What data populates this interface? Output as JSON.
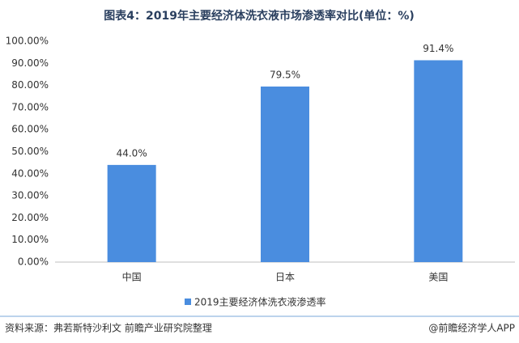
{
  "chart_data": {
    "type": "bar",
    "title": "图表4：2019年主要经济体洗衣液市场渗透率对比(单位：%)",
    "categories": [
      "中国",
      "日本",
      "美国"
    ],
    "series": [
      {
        "name": "2019主要经济体洗衣液渗透率",
        "color": "#4a8ddf",
        "values": [
          44.0,
          79.5,
          91.4
        ],
        "value_labels": [
          "44.0%",
          "79.5%",
          "91.4%"
        ]
      }
    ],
    "ylim": [
      0,
      100
    ],
    "yticks": [
      {
        "value": 0,
        "label": "0.00%"
      },
      {
        "value": 10,
        "label": "10.00%"
      },
      {
        "value": 20,
        "label": "20.00%"
      },
      {
        "value": 30,
        "label": "30.00%"
      },
      {
        "value": 40,
        "label": "40.00%"
      },
      {
        "value": 50,
        "label": "50.00%"
      },
      {
        "value": 60,
        "label": "60.00%"
      },
      {
        "value": 70,
        "label": "70.00%"
      },
      {
        "value": 80,
        "label": "80.00%"
      },
      {
        "value": 90,
        "label": "90.00%"
      },
      {
        "value": 100,
        "label": "100.00%"
      }
    ],
    "grid": false
  },
  "source": "资料来源：弗若斯特沙利文 前瞻产业研究院整理",
  "credit": "@前瞻经济学人APP"
}
